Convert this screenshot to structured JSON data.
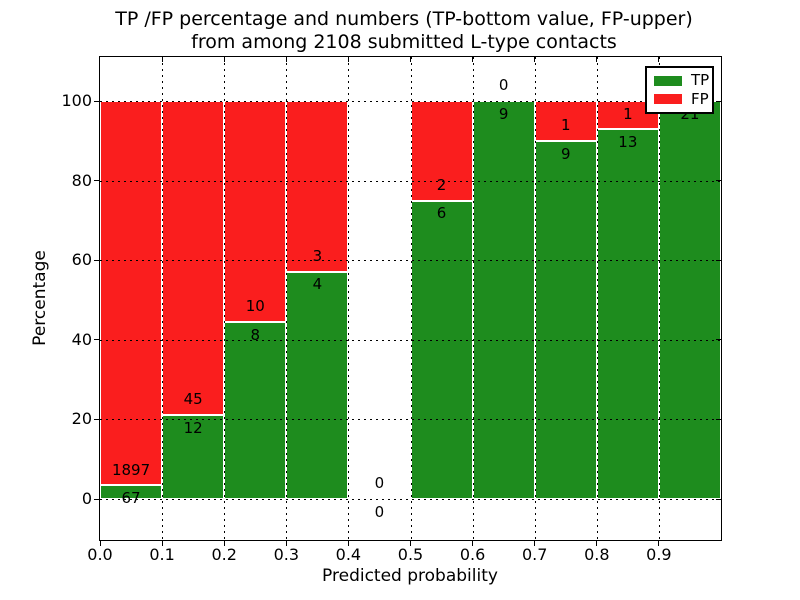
{
  "figure": {
    "title_line1": "TP /FP percentage and numbers (TP-bottom value, FP-upper)",
    "title_line2": "from among 2108 submitted L-type contacts",
    "xlabel": "Predicted probability",
    "ylabel": "Percentage"
  },
  "legend": {
    "items": [
      {
        "label": "TP",
        "color": "#1E8C1E"
      },
      {
        "label": "FP",
        "color": "#FA1E1E"
      }
    ]
  },
  "chart_data": {
    "type": "bar",
    "stacked": true,
    "title": "TP /FP percentage and numbers (TP-bottom value, FP-upper) from among 2108 submitted L-type contacts",
    "xlabel": "Predicted probability",
    "ylabel": "Percentage",
    "total_contacts": 2108,
    "x_tick_labels": [
      "0.0",
      "0.1",
      "0.2",
      "0.3",
      "0.4",
      "0.5",
      "0.6",
      "0.7",
      "0.8",
      "0.9"
    ],
    "y_ticks": [
      0,
      20,
      40,
      60,
      80,
      100
    ],
    "xlim": [
      0.0,
      1.0
    ],
    "ylim": [
      -10,
      110
    ],
    "grid": "dotted black, horizontal every 20, vertical every 0.1",
    "legend_position": "upper right",
    "bar_edge_color": "#FFFFFF",
    "series": [
      {
        "name": "TP",
        "color": "#1E8C1E"
      },
      {
        "name": "FP",
        "color": "#FA1E1E"
      }
    ],
    "bins": [
      {
        "x_range": [
          0.0,
          0.1
        ],
        "tp": 67,
        "fp": 1897,
        "tp_pct": 3.41
      },
      {
        "x_range": [
          0.1,
          0.2
        ],
        "tp": 12,
        "fp": 45,
        "tp_pct": 21.05
      },
      {
        "x_range": [
          0.2,
          0.3
        ],
        "tp": 8,
        "fp": 10,
        "tp_pct": 44.44
      },
      {
        "x_range": [
          0.3,
          0.4
        ],
        "tp": 4,
        "fp": 3,
        "tp_pct": 57.14
      },
      {
        "x_range": [
          0.4,
          0.5
        ],
        "tp": 0,
        "fp": 0,
        "tp_pct": null
      },
      {
        "x_range": [
          0.5,
          0.6
        ],
        "tp": 6,
        "fp": 2,
        "tp_pct": 75.0
      },
      {
        "x_range": [
          0.6,
          0.7
        ],
        "tp": 9,
        "fp": 0,
        "tp_pct": 100.0
      },
      {
        "x_range": [
          0.7,
          0.8
        ],
        "tp": 9,
        "fp": 1,
        "tp_pct": 90.0
      },
      {
        "x_range": [
          0.8,
          0.9
        ],
        "tp": 13,
        "fp": 1,
        "tp_pct": 92.86
      },
      {
        "x_range": [
          0.9,
          1.0
        ],
        "tp": 21,
        "fp": 0,
        "tp_pct": 100.0
      }
    ]
  }
}
